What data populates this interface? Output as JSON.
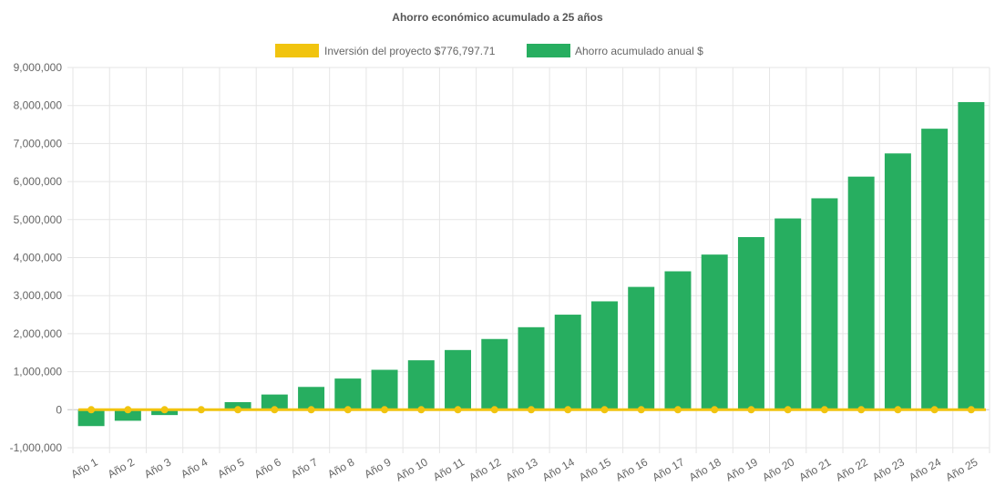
{
  "chart_data": {
    "type": "bar",
    "title": "Ahorro económico acumulado a 25 años",
    "categories": [
      "Año 1",
      "Año 2",
      "Año 3",
      "Año 4",
      "Año 5",
      "Año 6",
      "Año 7",
      "Año 8",
      "Año 9",
      "Año 10",
      "Año 11",
      "Año 12",
      "Año 13",
      "Año 14",
      "Año 15",
      "Año 16",
      "Año 17",
      "Año 18",
      "Año 19",
      "Año 20",
      "Año 21",
      "Año 22",
      "Año 23",
      "Año 24",
      "Año 25"
    ],
    "series": [
      {
        "name": "Inversión del proyecto $776,797.71",
        "type": "line",
        "color": "#f1c40f",
        "values": [
          0,
          0,
          0,
          0,
          0,
          0,
          0,
          0,
          0,
          0,
          0,
          0,
          0,
          0,
          0,
          0,
          0,
          0,
          0,
          0,
          0,
          0,
          0,
          0,
          0
        ]
      },
      {
        "name": "Ahorro acumulado anual $",
        "type": "bar",
        "color": "#27ae60",
        "values": [
          -430000,
          -290000,
          -140000,
          15000,
          200000,
          400000,
          600000,
          820000,
          1050000,
          1300000,
          1570000,
          1860000,
          2170000,
          2500000,
          2850000,
          3230000,
          3640000,
          4080000,
          4540000,
          5030000,
          5560000,
          6130000,
          6740000,
          7390000,
          8090000
        ]
      }
    ],
    "yticks": [
      "9,000,000",
      "8,000,000",
      "7,000,000",
      "6,000,000",
      "5,000,000",
      "4,000,000",
      "3,000,000",
      "2,000,000",
      "1,000,000",
      "0",
      "-1,000,000"
    ],
    "ylim": [
      -1000000,
      9000000
    ],
    "grid": true,
    "legend_position": "top"
  }
}
